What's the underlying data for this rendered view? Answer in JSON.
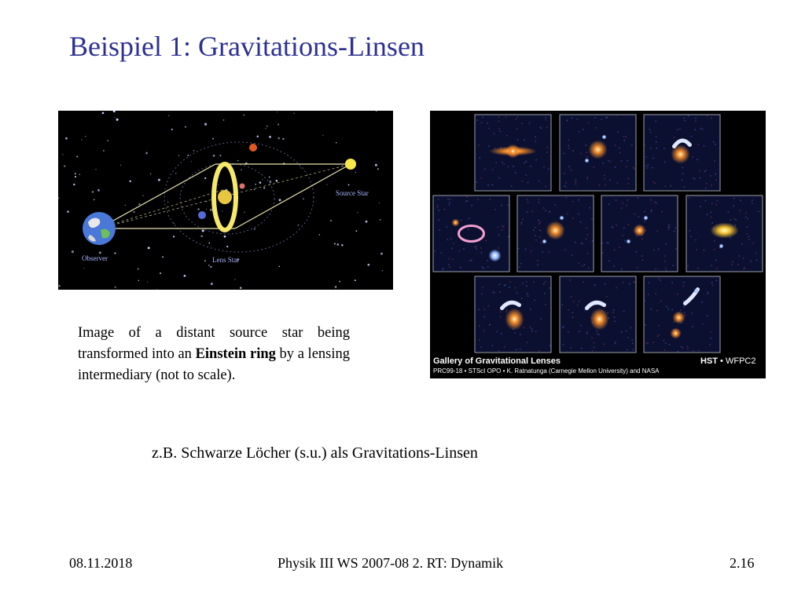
{
  "slide": {
    "title": "Beispiel 1: Gravitations-Linsen",
    "caption": {
      "part1": "Image of a distant source star being transformed into an ",
      "bold": "Einstein ring",
      "part2": " by a lensing intermediary (not to scale)."
    },
    "note": "z.B. Schwarze Löcher (s.u.) als Gravitations-Linsen"
  },
  "figure_left": {
    "labels": {
      "source": "Source Star",
      "observer": "Observer",
      "lens": "Lens Star"
    }
  },
  "figure_right": {
    "gallery_title": "Gallery of Gravitational Lenses",
    "instrument_bold": "HST",
    "instrument_rest": " • WFPC2",
    "credit": "PRC99-18 • STScI OPO • K. Ratnatunga (Carnegie Mellon University) and NASA"
  },
  "footer": {
    "date": "08.11.2018",
    "center": "Physik III WS 2007-08 2. RT: Dynamik",
    "page": "2.16"
  },
  "colors": {
    "title": "#2e3192",
    "ring": "#f5e86a",
    "sky": "#000000"
  }
}
